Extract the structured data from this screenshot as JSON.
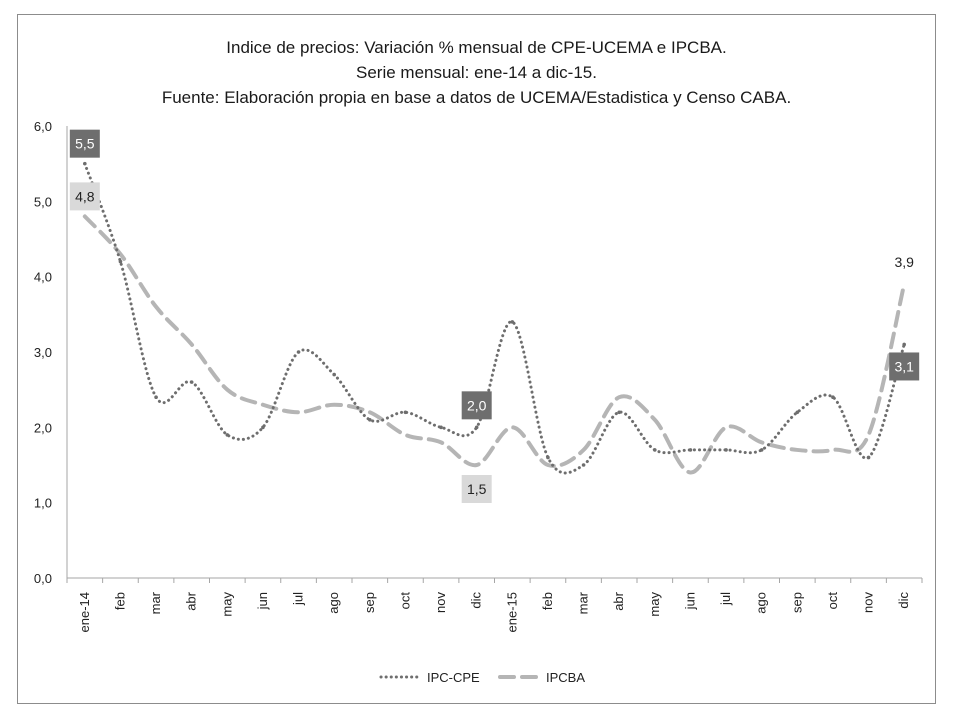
{
  "chart_data": {
    "type": "line",
    "title_lines": [
      "Indice de precios: Variación % mensual de CPE-UCEMA e IPCBA.",
      "Serie mensual: ene-14 a dic-15.",
      "Fuente: Elaboración propia en base a datos de UCEMA/Estadistica y Censo CABA."
    ],
    "xlabel": "",
    "ylabel": "",
    "ylim": [
      0,
      6
    ],
    "yticks": [
      "0,0",
      "1,0",
      "2,0",
      "3,0",
      "4,0",
      "5,0",
      "6,0"
    ],
    "categories": [
      "ene-14",
      "feb",
      "mar",
      "abr",
      "may",
      "jun",
      "jul",
      "ago",
      "sep",
      "oct",
      "nov",
      "dic",
      "ene-15",
      "feb",
      "mar",
      "abr",
      "may",
      "jun",
      "jul",
      "ago",
      "sep",
      "oct",
      "nov",
      "dic"
    ],
    "series": [
      {
        "name": "IPC-CPE",
        "style": "dotted",
        "color": "#6e6e6e",
        "values": [
          5.5,
          4.2,
          2.4,
          2.6,
          1.9,
          2.0,
          3.0,
          2.7,
          2.1,
          2.2,
          2.0,
          2.0,
          3.4,
          1.6,
          1.5,
          2.2,
          1.7,
          1.7,
          1.7,
          1.7,
          2.2,
          2.4,
          1.6,
          3.1
        ]
      },
      {
        "name": "IPCBA",
        "style": "dashed",
        "color": "#b5b5b5",
        "values": [
          4.8,
          4.3,
          3.6,
          3.1,
          2.5,
          2.3,
          2.2,
          2.3,
          2.2,
          1.9,
          1.8,
          1.5,
          2.0,
          1.5,
          1.7,
          2.4,
          2.1,
          1.4,
          2.0,
          1.8,
          1.7,
          1.7,
          1.9,
          3.9
        ]
      }
    ],
    "data_labels": [
      {
        "series": 0,
        "index": 0,
        "text": "5,5",
        "bg": "#6e6e6e",
        "fg": "#ffffff"
      },
      {
        "series": 1,
        "index": 0,
        "text": "4,8",
        "bg": "#d9d9d9",
        "fg": "#222222"
      },
      {
        "series": 0,
        "index": 11,
        "text": "2,0",
        "bg": "#6e6e6e",
        "fg": "#ffffff"
      },
      {
        "series": 1,
        "index": 11,
        "text": "1,5",
        "bg": "#d9d9d9",
        "fg": "#222222"
      },
      {
        "series": 1,
        "index": 23,
        "text": "3,9",
        "bg": "#ffffff",
        "fg": "#222222"
      },
      {
        "series": 0,
        "index": 23,
        "text": "3,1",
        "bg": "#6e6e6e",
        "fg": "#ffffff"
      }
    ],
    "legend": {
      "position": "bottom"
    },
    "grid": false
  }
}
